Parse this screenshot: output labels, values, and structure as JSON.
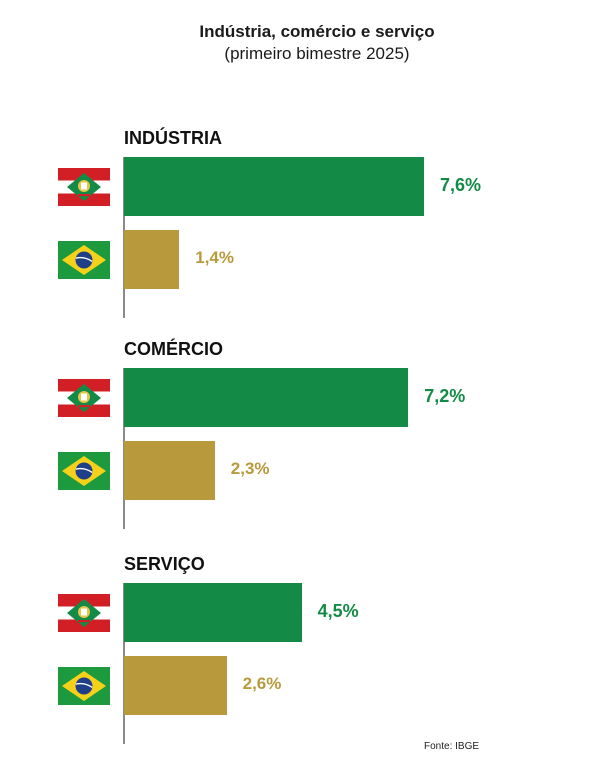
{
  "title": "Indústria, comércio e serviço",
  "subtitle": "(primeiro bimestre 2025)",
  "source": "Fonte: IBGE",
  "colors": {
    "santa_catarina": "#138a45",
    "brasil": "#b89a3c"
  },
  "chart_data": {
    "type": "bar",
    "orientation": "horizontal",
    "title": "Indústria, comércio e serviço",
    "subtitle": "(primeiro bimestre 2025)",
    "categories": [
      "INDÚSTRIA",
      "COMÉRCIO",
      "SERVIÇO"
    ],
    "series": [
      {
        "flag": "santa-catarina-flag-icon",
        "color": "#138a45",
        "values": [
          7.6,
          7.2,
          4.5
        ],
        "labels": [
          "7,6%",
          "7,2%",
          "4,5%"
        ]
      },
      {
        "flag": "brazil-flag-icon",
        "color": "#b89a3c",
        "values": [
          1.4,
          2.3,
          2.6
        ],
        "labels": [
          "1,4%",
          "2,3%",
          "2,6%"
        ]
      }
    ],
    "unit": "%",
    "xlim": [
      0,
      7.6
    ],
    "grid": false,
    "legend": "none (flags identify series)"
  }
}
